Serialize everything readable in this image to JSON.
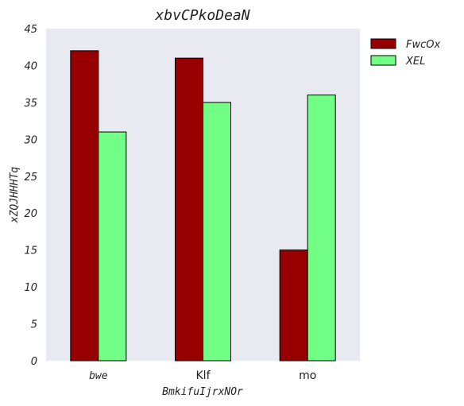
{
  "chart_data": {
    "type": "bar",
    "title": "xbvCPkoDeaN",
    "xlabel": "BmkifuIjrxNOr",
    "ylabel": "xZQJHHHTq",
    "categories": [
      "bwe",
      "Klf",
      "mo"
    ],
    "category_label_styles": [
      "italic",
      "plain",
      "plain"
    ],
    "ylim": [
      0,
      45
    ],
    "yticks": [
      0,
      5,
      10,
      15,
      20,
      25,
      30,
      35,
      40,
      45
    ],
    "grid": false,
    "legend_position": "outside top-right",
    "plot_background": "#e9e9f1",
    "series": [
      {
        "name": "FwcOx",
        "color": "#970000",
        "values": [
          42,
          41,
          15
        ]
      },
      {
        "name": "XEL",
        "color": "#71ff85",
        "values": [
          31,
          35,
          36
        ]
      }
    ]
  }
}
